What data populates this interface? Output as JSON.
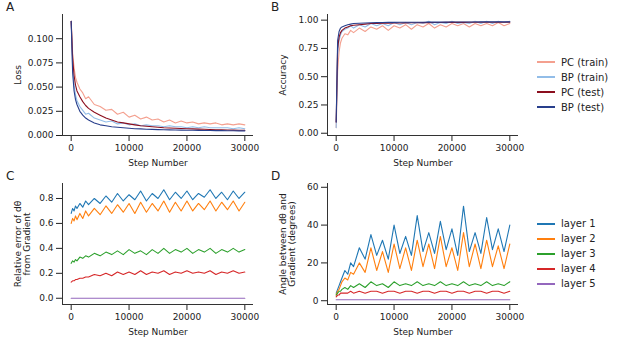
{
  "chart_data": [
    {
      "type": "line",
      "title": "A",
      "x_label": "Step Number",
      "y_label": "Loss",
      "x": [
        0,
        250,
        500,
        750,
        1000,
        1500,
        2000,
        2500,
        3000,
        4000,
        5000,
        6000,
        7000,
        8000,
        9000,
        10000,
        11000,
        12000,
        13000,
        14000,
        15000,
        16000,
        17000,
        18000,
        19000,
        20000,
        21000,
        22000,
        23000,
        24000,
        25000,
        26000,
        27000,
        28000,
        29000,
        30000
      ],
      "xlim": [
        -1500,
        31500
      ],
      "xticks": [
        0,
        10000,
        20000,
        30000
      ],
      "ylim": [
        0,
        0.125
      ],
      "yticks": [
        {
          "value": 0,
          "label": "0.000"
        },
        {
          "value": 0.025,
          "label": "0.025"
        },
        {
          "value": 0.05,
          "label": "0.050"
        },
        {
          "value": 0.075,
          "label": "0.075"
        },
        {
          "value": 0.1,
          "label": "0.100"
        }
      ],
      "series": [
        {
          "name": "PC (train)",
          "color": "#f4a08f",
          "values": [
            0.118,
            0.085,
            0.07,
            0.06,
            0.055,
            0.048,
            0.044,
            0.038,
            0.04,
            0.032,
            0.03,
            0.026,
            0.027,
            0.022,
            0.024,
            0.019,
            0.021,
            0.017,
            0.019,
            0.016,
            0.017,
            0.014,
            0.016,
            0.013,
            0.015,
            0.013,
            0.014,
            0.012,
            0.013,
            0.012,
            0.013,
            0.011,
            0.012,
            0.011,
            0.012,
            0.011
          ]
        },
        {
          "name": "BP (train)",
          "color": "#92bde8",
          "values": [
            0.118,
            0.07,
            0.052,
            0.042,
            0.036,
            0.03,
            0.026,
            0.022,
            0.023,
            0.018,
            0.016,
            0.014,
            0.015,
            0.012,
            0.013,
            0.011,
            0.012,
            0.01,
            0.011,
            0.01,
            0.01,
            0.009,
            0.01,
            0.009,
            0.009,
            0.008,
            0.009,
            0.008,
            0.009,
            0.008,
            0.008,
            0.008,
            0.008,
            0.007,
            0.008,
            0.007
          ]
        },
        {
          "name": "PC (test)",
          "color": "#8b0e1e",
          "values": [
            0.118,
            0.08,
            0.062,
            0.052,
            0.046,
            0.04,
            0.035,
            0.031,
            0.028,
            0.024,
            0.021,
            0.018,
            0.016,
            0.014,
            0.013,
            0.012,
            0.011,
            0.01,
            0.0095,
            0.009,
            0.0085,
            0.008,
            0.0078,
            0.0075,
            0.0072,
            0.007,
            0.0068,
            0.0066,
            0.0064,
            0.0062,
            0.006,
            0.0058,
            0.0057,
            0.0056,
            0.0055,
            0.0054
          ]
        },
        {
          "name": "BP (test)",
          "color": "#283f8c",
          "values": [
            0.118,
            0.065,
            0.046,
            0.037,
            0.032,
            0.025,
            0.021,
            0.018,
            0.016,
            0.013,
            0.011,
            0.01,
            0.009,
            0.0085,
            0.008,
            0.0075,
            0.007,
            0.0068,
            0.0065,
            0.0063,
            0.0061,
            0.006,
            0.0058,
            0.0057,
            0.0056,
            0.0055,
            0.0054,
            0.0053,
            0.0052,
            0.0051,
            0.005,
            0.005,
            0.0049,
            0.0049,
            0.0048,
            0.0048
          ]
        }
      ]
    },
    {
      "type": "line",
      "title": "B",
      "x_label": "Step Number",
      "y_label": "Accuracy",
      "legend": "right",
      "x": [
        0,
        250,
        500,
        750,
        1000,
        1500,
        2000,
        2500,
        3000,
        4000,
        5000,
        6000,
        7000,
        8000,
        9000,
        10000,
        11000,
        12000,
        13000,
        14000,
        15000,
        16000,
        17000,
        18000,
        19000,
        20000,
        21000,
        22000,
        23000,
        24000,
        25000,
        26000,
        27000,
        28000,
        29000,
        30000
      ],
      "xlim": [
        -1500,
        31500
      ],
      "xticks": [
        0,
        10000,
        20000,
        30000
      ],
      "ylim": [
        -0.02,
        1.05
      ],
      "yticks": [
        {
          "value": 0,
          "label": "0.00"
        },
        {
          "value": 0.25,
          "label": "0.25"
        },
        {
          "value": 0.5,
          "label": "0.50"
        },
        {
          "value": 0.75,
          "label": "0.75"
        },
        {
          "value": 1,
          "label": "1.00"
        }
      ],
      "series": [
        {
          "name": "PC (train)",
          "color": "#f4a08f",
          "values": [
            0.05,
            0.55,
            0.72,
            0.8,
            0.84,
            0.88,
            0.87,
            0.91,
            0.89,
            0.93,
            0.9,
            0.94,
            0.92,
            0.95,
            0.91,
            0.95,
            0.93,
            0.96,
            0.92,
            0.96,
            0.94,
            0.97,
            0.93,
            0.96,
            0.94,
            0.97,
            0.95,
            0.97,
            0.94,
            0.97,
            0.95,
            0.97,
            0.95,
            0.98,
            0.95,
            0.97
          ]
        },
        {
          "name": "BP (train)",
          "color": "#92bde8",
          "values": [
            0.05,
            0.7,
            0.82,
            0.87,
            0.9,
            0.92,
            0.93,
            0.95,
            0.93,
            0.96,
            0.94,
            0.97,
            0.95,
            0.97,
            0.95,
            0.98,
            0.96,
            0.98,
            0.96,
            0.98,
            0.97,
            0.99,
            0.96,
            0.98,
            0.97,
            0.99,
            0.97,
            0.98,
            0.97,
            0.99,
            0.97,
            0.99,
            0.97,
            0.99,
            0.98,
            0.99
          ]
        },
        {
          "name": "PC (test)",
          "color": "#8b0e1e",
          "values": [
            0.1,
            0.75,
            0.85,
            0.89,
            0.91,
            0.93,
            0.94,
            0.95,
            0.955,
            0.96,
            0.965,
            0.97,
            0.97,
            0.972,
            0.973,
            0.975,
            0.975,
            0.976,
            0.977,
            0.977,
            0.978,
            0.978,
            0.979,
            0.979,
            0.98,
            0.98,
            0.98,
            0.98,
            0.981,
            0.981,
            0.981,
            0.982,
            0.982,
            0.982,
            0.982,
            0.983
          ]
        },
        {
          "name": "BP (test)",
          "color": "#283f8c",
          "values": [
            0.1,
            0.82,
            0.9,
            0.93,
            0.94,
            0.95,
            0.96,
            0.965,
            0.97,
            0.972,
            0.975,
            0.977,
            0.978,
            0.979,
            0.98,
            0.98,
            0.981,
            0.981,
            0.982,
            0.982,
            0.982,
            0.983,
            0.983,
            0.983,
            0.983,
            0.984,
            0.984,
            0.984,
            0.984,
            0.984,
            0.985,
            0.985,
            0.985,
            0.985,
            0.985,
            0.985
          ]
        }
      ]
    },
    {
      "type": "line",
      "title": "C",
      "x_label": "Step Number",
      "y_label": "Relative error of dθ\nfrom Gradient",
      "x": [
        0,
        250,
        500,
        750,
        1000,
        1500,
        2000,
        2500,
        3000,
        4000,
        5000,
        6000,
        7000,
        8000,
        9000,
        10000,
        11000,
        12000,
        13000,
        14000,
        15000,
        16000,
        17000,
        18000,
        19000,
        20000,
        21000,
        22000,
        23000,
        24000,
        25000,
        26000,
        27000,
        28000,
        29000,
        30000
      ],
      "xlim": [
        -1500,
        31500
      ],
      "xticks": [
        0,
        10000,
        20000,
        30000
      ],
      "ylim": [
        -0.05,
        0.92
      ],
      "yticks": [
        {
          "value": 0,
          "label": "0.0"
        },
        {
          "value": 0.2,
          "label": "0.2"
        },
        {
          "value": 0.4,
          "label": "0.4"
        },
        {
          "value": 0.6,
          "label": "0.6"
        },
        {
          "value": 0.8,
          "label": "0.8"
        }
      ],
      "series": [
        {
          "name": "layer 1",
          "color": "#1f77b4",
          "values": [
            0.68,
            0.72,
            0.7,
            0.74,
            0.72,
            0.76,
            0.73,
            0.78,
            0.75,
            0.8,
            0.76,
            0.82,
            0.77,
            0.84,
            0.78,
            0.83,
            0.79,
            0.86,
            0.78,
            0.84,
            0.8,
            0.87,
            0.79,
            0.85,
            0.8,
            0.86,
            0.79,
            0.84,
            0.81,
            0.87,
            0.8,
            0.85,
            0.79,
            0.86,
            0.8,
            0.85
          ]
        },
        {
          "name": "layer 2",
          "color": "#ff7f0e",
          "values": [
            0.6,
            0.64,
            0.62,
            0.66,
            0.63,
            0.68,
            0.64,
            0.7,
            0.66,
            0.72,
            0.67,
            0.74,
            0.68,
            0.75,
            0.69,
            0.76,
            0.68,
            0.77,
            0.69,
            0.76,
            0.7,
            0.78,
            0.69,
            0.77,
            0.7,
            0.78,
            0.7,
            0.76,
            0.71,
            0.78,
            0.7,
            0.77,
            0.71,
            0.78,
            0.7,
            0.77
          ]
        },
        {
          "name": "layer 3",
          "color": "#2ca02c",
          "values": [
            0.28,
            0.3,
            0.29,
            0.31,
            0.3,
            0.33,
            0.32,
            0.34,
            0.33,
            0.36,
            0.34,
            0.37,
            0.35,
            0.38,
            0.35,
            0.39,
            0.36,
            0.38,
            0.35,
            0.39,
            0.36,
            0.4,
            0.36,
            0.39,
            0.37,
            0.4,
            0.36,
            0.39,
            0.37,
            0.4,
            0.36,
            0.39,
            0.37,
            0.4,
            0.37,
            0.39
          ]
        },
        {
          "name": "layer 4",
          "color": "#d62728",
          "values": [
            0.13,
            0.14,
            0.14,
            0.15,
            0.15,
            0.16,
            0.16,
            0.17,
            0.17,
            0.19,
            0.18,
            0.2,
            0.18,
            0.21,
            0.19,
            0.21,
            0.19,
            0.22,
            0.19,
            0.21,
            0.2,
            0.22,
            0.19,
            0.21,
            0.2,
            0.22,
            0.2,
            0.21,
            0.2,
            0.22,
            0.19,
            0.21,
            0.2,
            0.22,
            0.2,
            0.21
          ]
        },
        {
          "name": "layer 5",
          "color": "#9467bd",
          "values": [
            0,
            0,
            0,
            0,
            0,
            0,
            0,
            0,
            0,
            0,
            0,
            0,
            0,
            0,
            0,
            0,
            0,
            0,
            0,
            0,
            0,
            0,
            0,
            0,
            0,
            0,
            0,
            0,
            0,
            0,
            0,
            0,
            0,
            0,
            0,
            0
          ]
        }
      ]
    },
    {
      "type": "line",
      "title": "D",
      "x_label": "Step Number",
      "y_label": "Angle between dθ and\nGradient (degrees)",
      "legend": "right",
      "x": [
        0,
        250,
        500,
        750,
        1000,
        1500,
        2000,
        2500,
        3000,
        4000,
        5000,
        6000,
        7000,
        8000,
        9000,
        10000,
        11000,
        12000,
        13000,
        14000,
        15000,
        16000,
        17000,
        18000,
        19000,
        20000,
        21000,
        22000,
        23000,
        24000,
        25000,
        26000,
        27000,
        28000,
        29000,
        30000
      ],
      "xlim": [
        -1500,
        31500
      ],
      "xticks": [
        0,
        10000,
        20000,
        30000
      ],
      "ylim": [
        -2,
        62
      ],
      "yticks": [
        0,
        20,
        40,
        60
      ],
      "series": [
        {
          "name": "layer 1",
          "color": "#1f77b4",
          "values": [
            4,
            6,
            8,
            10,
            12,
            16,
            14,
            20,
            18,
            28,
            22,
            35,
            24,
            32,
            22,
            40,
            25,
            34,
            24,
            45,
            26,
            36,
            25,
            42,
            27,
            38,
            24,
            50,
            26,
            36,
            25,
            44,
            27,
            38,
            26,
            40
          ]
        },
        {
          "name": "layer 2",
          "color": "#ff7f0e",
          "values": [
            3,
            5,
            6,
            8,
            10,
            12,
            11,
            15,
            14,
            20,
            15,
            28,
            16,
            26,
            15,
            30,
            17,
            28,
            16,
            32,
            18,
            30,
            17,
            34,
            18,
            28,
            16,
            36,
            18,
            30,
            17,
            32,
            18,
            29,
            17,
            30
          ]
        },
        {
          "name": "layer 3",
          "color": "#2ca02c",
          "values": [
            3,
            4,
            5,
            5,
            6,
            7,
            6,
            8,
            7,
            9,
            7,
            10,
            8,
            9,
            7,
            10,
            8,
            9,
            8,
            10,
            8,
            9,
            8,
            10,
            8,
            9,
            8,
            10,
            8,
            9,
            8,
            10,
            8,
            9,
            8,
            10
          ]
        },
        {
          "name": "layer 4",
          "color": "#d62728",
          "values": [
            2,
            3,
            3,
            4,
            4,
            4,
            4,
            5,
            4,
            5,
            4,
            5,
            5,
            4,
            5,
            5,
            4,
            5,
            5,
            4,
            5,
            5,
            4,
            5,
            5,
            4,
            5,
            5,
            4,
            5,
            5,
            4,
            5,
            5,
            4,
            5
          ]
        },
        {
          "name": "layer 5",
          "color": "#9467bd",
          "values": [
            0.5,
            0.5,
            0.5,
            0.5,
            0.5,
            0.5,
            0.5,
            0.5,
            0.5,
            0.5,
            0.5,
            0.5,
            0.5,
            0.5,
            0.5,
            0.5,
            0.5,
            0.5,
            0.5,
            0.5,
            0.5,
            0.5,
            0.5,
            0.5,
            0.5,
            0.5,
            0.5,
            0.5,
            0.5,
            0.5,
            0.5,
            0.5,
            0.5,
            0.5,
            0.5,
            0.5
          ]
        }
      ]
    }
  ]
}
